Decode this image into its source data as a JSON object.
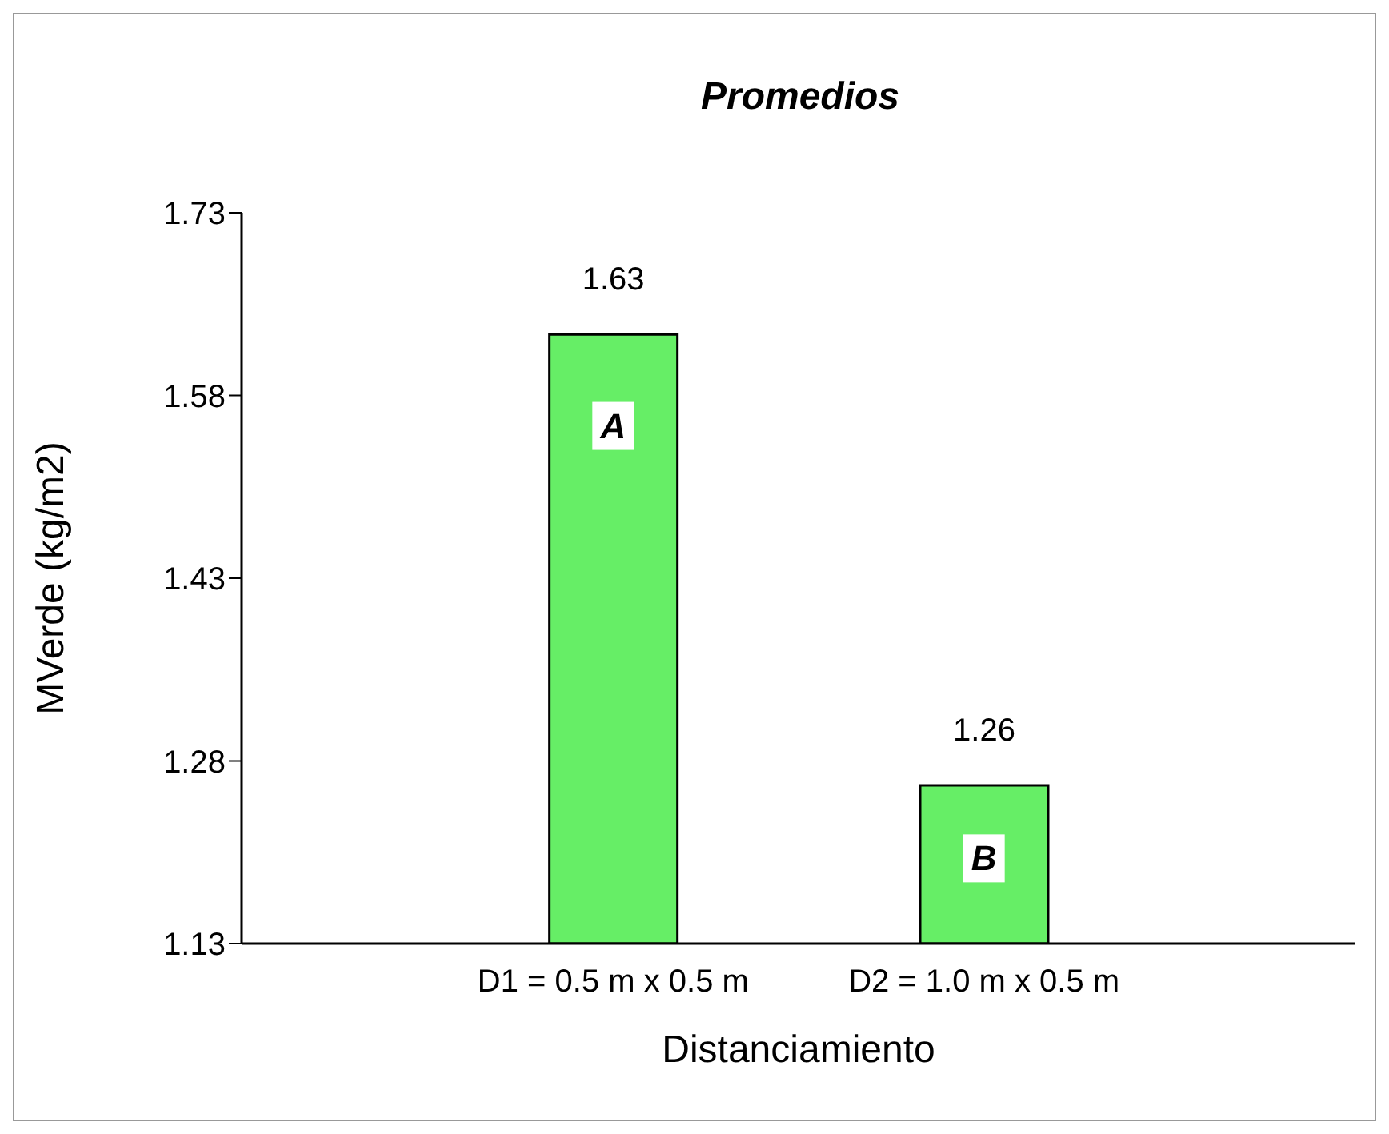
{
  "chart_data": {
    "type": "bar",
    "title": "Promedios",
    "xlabel": "Distanciamiento",
    "ylabel": "MVerde (kg/m2)",
    "categories": [
      "D1 = 0.5 m x 0.5 m",
      "D2 = 1.0 m x 0.5 m"
    ],
    "values": [
      1.63,
      1.26
    ],
    "color": "#66ee66",
    "ylim": [
      1.13,
      1.73
    ],
    "yticks": [
      1.13,
      1.28,
      1.43,
      1.58,
      1.73
    ],
    "grid": false,
    "data_labels": true,
    "annotations": [
      {
        "text": "A",
        "x": "D1 = 0.5 m x 0.5 m",
        "y": 1.555
      },
      {
        "text": "B",
        "x": "D2 = 1.0 m x 0.5 m",
        "y": 1.2
      }
    ]
  }
}
